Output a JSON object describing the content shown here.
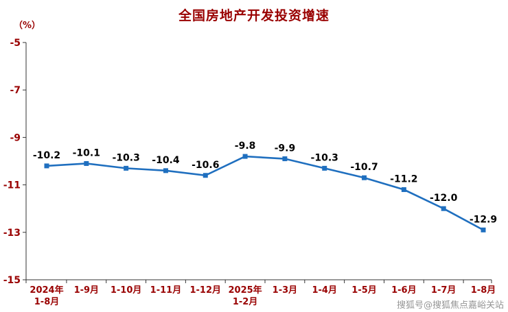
{
  "chart_data": {
    "type": "line",
    "title": "全国房地产开发投资增速",
    "unit_label": "（%）",
    "categories": [
      "2024年\n1-8月",
      "1-9月",
      "1-10月",
      "1-11月",
      "1-12月",
      "2025年\n1-2月",
      "1-3月",
      "1-4月",
      "1-5月",
      "1-6月",
      "1-7月",
      "1-8月"
    ],
    "values": [
      -10.2,
      -10.1,
      -10.3,
      -10.4,
      -10.6,
      -9.8,
      -9.9,
      -10.3,
      -10.7,
      -11.2,
      -12.0,
      -12.9
    ],
    "yticks": [
      -5,
      -7,
      -9,
      -11,
      -13,
      -15
    ],
    "ylim": [
      -15,
      -5
    ],
    "grid": false,
    "legend": "none",
    "line_color": "#1f6fbf",
    "axis_text_color": "#990000",
    "label_color": "#000000"
  },
  "watermark": {
    "text": "搜狐号@搜狐焦点嘉峪关站"
  }
}
